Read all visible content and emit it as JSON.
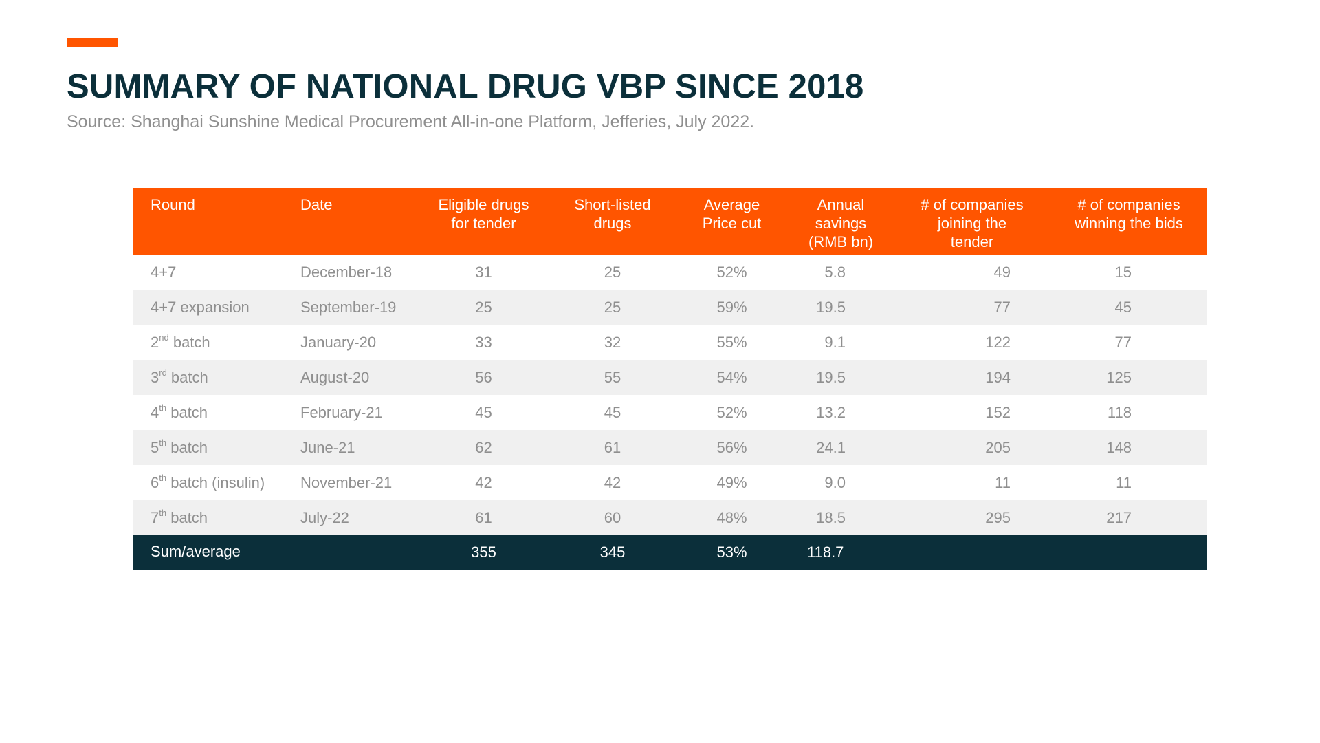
{
  "title": "SUMMARY OF NATIONAL DRUG VBP SINCE 2018",
  "source": "Source: Shanghai Sunshine Medical Procurement All-in-one Platform, Jefferies, July 2022.",
  "colors": {
    "accent": "#ff5500",
    "dark": "#0b2f3a",
    "muted_text": "#8f8f8f",
    "stripe": "#f0f0f0"
  },
  "table": {
    "headers": {
      "round": "Round",
      "date": "Date",
      "eligible": [
        "Eligible drugs",
        "for tender"
      ],
      "short": [
        "Short-listed",
        "drugs"
      ],
      "cut": [
        "Average",
        "Price cut"
      ],
      "savings": [
        "Annual",
        "savings",
        "(RMB bn)"
      ],
      "joining": [
        "# of companies",
        "joining the",
        "tender"
      ],
      "winning": [
        "# of companies",
        "winning the bids"
      ]
    },
    "rows": [
      {
        "round": "4+7",
        "ord": "",
        "round_suffix": "",
        "date": "December-18",
        "eligible": "31",
        "short": "25",
        "cut": "52%",
        "savings": "5.8",
        "joining": "49",
        "winning": "15"
      },
      {
        "round": "4+7 expansion",
        "ord": "",
        "round_suffix": "",
        "date": "September-19",
        "eligible": "25",
        "short": "25",
        "cut": "59%",
        "savings": "19.5",
        "joining": "77",
        "winning": "45"
      },
      {
        "round": "2",
        "ord": "nd",
        "round_suffix": " batch",
        "date": "January-20",
        "eligible": "33",
        "short": "32",
        "cut": "55%",
        "savings": "9.1",
        "joining": "122",
        "winning": "77"
      },
      {
        "round": "3",
        "ord": "rd",
        "round_suffix": " batch",
        "date": "August-20",
        "eligible": "56",
        "short": "55",
        "cut": "54%",
        "savings": "19.5",
        "joining": "194",
        "winning": "125"
      },
      {
        "round": "4",
        "ord": "th",
        "round_suffix": " batch",
        "date": "February-21",
        "eligible": "45",
        "short": "45",
        "cut": "52%",
        "savings": "13.2",
        "joining": "152",
        "winning": "118"
      },
      {
        "round": "5",
        "ord": "th",
        "round_suffix": " batch",
        "date": "June-21",
        "eligible": "62",
        "short": "61",
        "cut": "56%",
        "savings": "24.1",
        "joining": "205",
        "winning": "148"
      },
      {
        "round": "6",
        "ord": "th",
        "round_suffix": " batch (insulin)",
        "date": "November-21",
        "eligible": "42",
        "short": "42",
        "cut": "49%",
        "savings": "9.0",
        "joining": "11",
        "winning": "11"
      },
      {
        "round": "7",
        "ord": "th",
        "round_suffix": " batch",
        "date": "July-22",
        "eligible": "61",
        "short": "60",
        "cut": "48%",
        "savings": "18.5",
        "joining": "295",
        "winning": "217"
      }
    ],
    "footer": {
      "label": "Sum/average",
      "eligible": "355",
      "short": "345",
      "cut": "53%",
      "savings": "118.7"
    }
  }
}
